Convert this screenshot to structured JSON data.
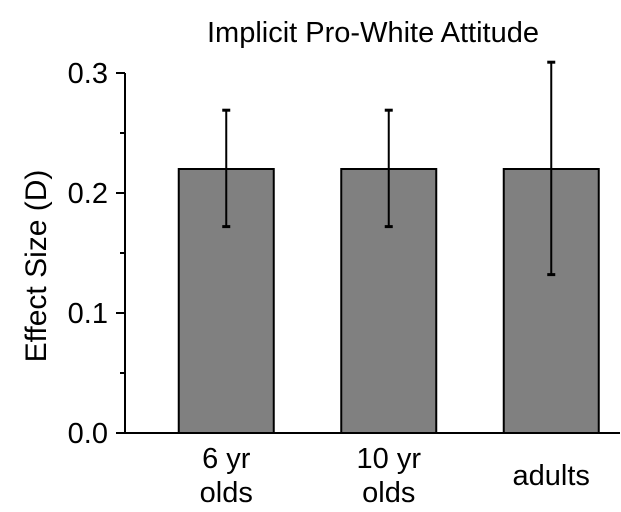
{
  "chart_data": {
    "type": "bar",
    "title": "Implicit Pro-White Attitude",
    "xlabel": "",
    "ylabel": "Effect Size (D)",
    "ylim": [
      0,
      0.3
    ],
    "yticks": [
      0.0,
      0.1,
      0.2,
      0.3
    ],
    "ytick_labels": [
      "0.0",
      "0.1",
      "0.2",
      "0.3"
    ],
    "categories": [
      {
        "lines": [
          "6 yr",
          "olds"
        ]
      },
      {
        "lines": [
          "10 yr",
          "olds"
        ]
      },
      {
        "lines": [
          "adults"
        ]
      }
    ],
    "values": [
      0.22,
      0.22,
      0.22
    ],
    "error_low": [
      0.172,
      0.172,
      0.132
    ],
    "error_high": [
      0.269,
      0.269,
      0.309
    ],
    "grid": false,
    "legend": "none",
    "bar_color": "#808080"
  }
}
